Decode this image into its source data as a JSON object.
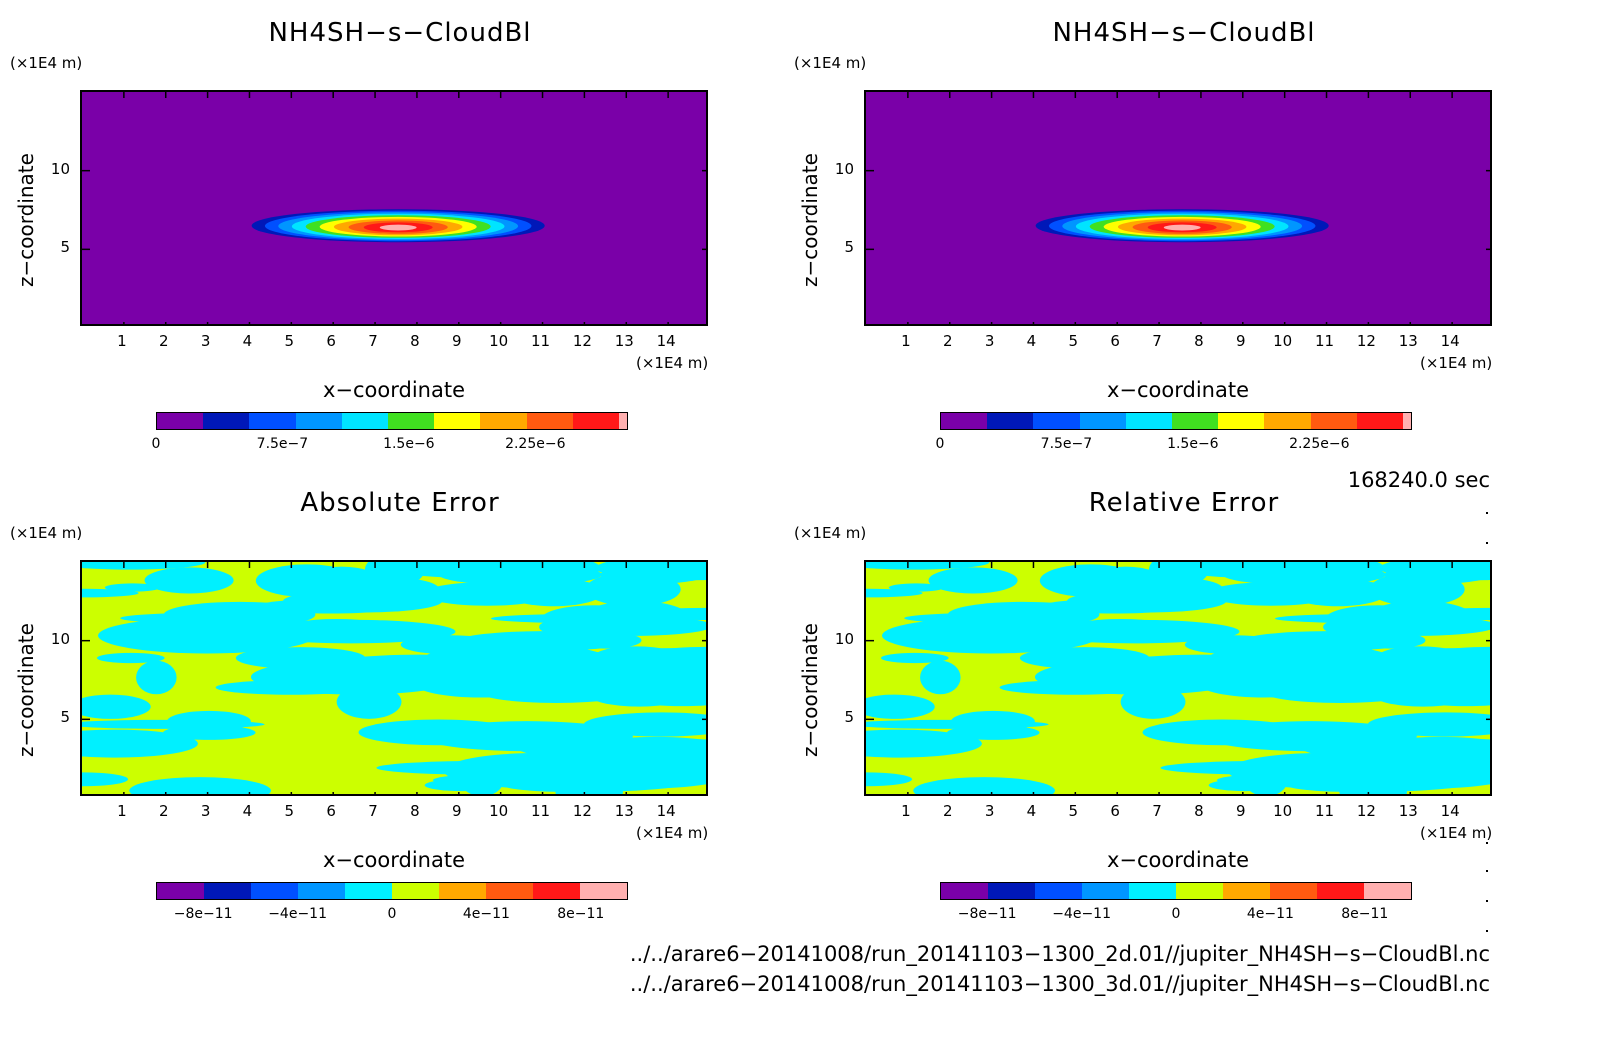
{
  "panels": [
    {
      "title": "NH4SH−s−CloudBl",
      "kind": "cloud"
    },
    {
      "title": "NH4SH−s−CloudBl",
      "kind": "cloud"
    },
    {
      "title": "Absolute Error",
      "kind": "error"
    },
    {
      "title": "Relative Error",
      "kind": "error"
    }
  ],
  "axis": {
    "xlabel": "x−coordinate",
    "ylabel": "z−coordinate",
    "unit": "(×1E4 m)",
    "xticks": [
      "1",
      "2",
      "3",
      "4",
      "5",
      "6",
      "7",
      "8",
      "9",
      "10",
      "11",
      "12",
      "13",
      "14"
    ],
    "yticks": [
      "10",
      "5"
    ]
  },
  "colorbars": {
    "cloud": {
      "colors": [
        "#7a00a8",
        "#0018b8",
        "#0050ff",
        "#0096ff",
        "#00e4ff",
        "#40e020",
        "#ffff00",
        "#ffa800",
        "#ff5a10",
        "#ff1818",
        "#ffb0b0"
      ],
      "tick_labels": [
        "0",
        "7.5e−7",
        "1.5e−6",
        "2.25e−6"
      ]
    },
    "error": {
      "colors": [
        "#7a00a8",
        "#0018b8",
        "#0050ff",
        "#0096ff",
        "#00f0ff",
        "#ccff00",
        "#ffa800",
        "#ff5a10",
        "#ff1818",
        "#ffb0b0"
      ],
      "tick_labels": [
        "−8e−11",
        "−4e−11",
        "0",
        "4e−11",
        "8e−11"
      ]
    }
  },
  "time_label": "168240.0 sec",
  "files": [
    "../../arare6−20141008/run_20141103−1300_2d.01//jupiter_NH4SH−s−CloudBl.nc",
    "../../arare6−20141008/run_20141103−1300_3d.01//jupiter_NH4SH−s−CloudBl.nc"
  ],
  "chart_data": [
    {
      "type": "heatmap",
      "title": "NH4SH−s−CloudBl",
      "xlabel": "x−coordinate",
      "ylabel": "z−coordinate",
      "xlim": [
        0,
        15
      ],
      "ylim": [
        0,
        15
      ],
      "colorbar_range": [
        0,
        2.8e-06
      ],
      "colorbar_ticks": [
        0,
        7.5e-07,
        1.5e-06,
        2.25e-06
      ],
      "cloud_layer": {
        "x_range": [
          4.0,
          11.0
        ],
        "z_range": [
          5.6,
          7.7
        ],
        "peak_x": 7.6,
        "peak_z": 6.5
      }
    },
    {
      "type": "heatmap",
      "title": "NH4SH−s−CloudBl",
      "xlabel": "x−coordinate",
      "ylabel": "z−coordinate",
      "xlim": [
        0,
        15
      ],
      "ylim": [
        0,
        15
      ],
      "colorbar_range": [
        0,
        2.8e-06
      ],
      "colorbar_ticks": [
        0,
        7.5e-07,
        1.5e-06,
        2.25e-06
      ],
      "cloud_layer": {
        "x_range": [
          4.0,
          11.0
        ],
        "z_range": [
          5.6,
          7.7
        ],
        "peak_x": 7.6,
        "peak_z": 6.5
      }
    },
    {
      "type": "heatmap",
      "title": "Absolute Error",
      "xlabel": "x−coordinate",
      "ylabel": "z−coordinate",
      "xlim": [
        0,
        15
      ],
      "ylim": [
        0,
        15
      ],
      "colorbar_range": [
        -1e-10,
        1e-10
      ],
      "colorbar_ticks": [
        -8e-11,
        -4e-11,
        0,
        4e-11,
        8e-11
      ]
    },
    {
      "type": "heatmap",
      "title": "Relative Error",
      "xlabel": "x−coordinate",
      "ylabel": "z−coordinate",
      "xlim": [
        0,
        15
      ],
      "ylim": [
        0,
        15
      ],
      "colorbar_range": [
        -1e-10,
        1e-10
      ],
      "colorbar_ticks": [
        -8e-11,
        -4e-11,
        0,
        4e-11,
        8e-11
      ]
    }
  ]
}
